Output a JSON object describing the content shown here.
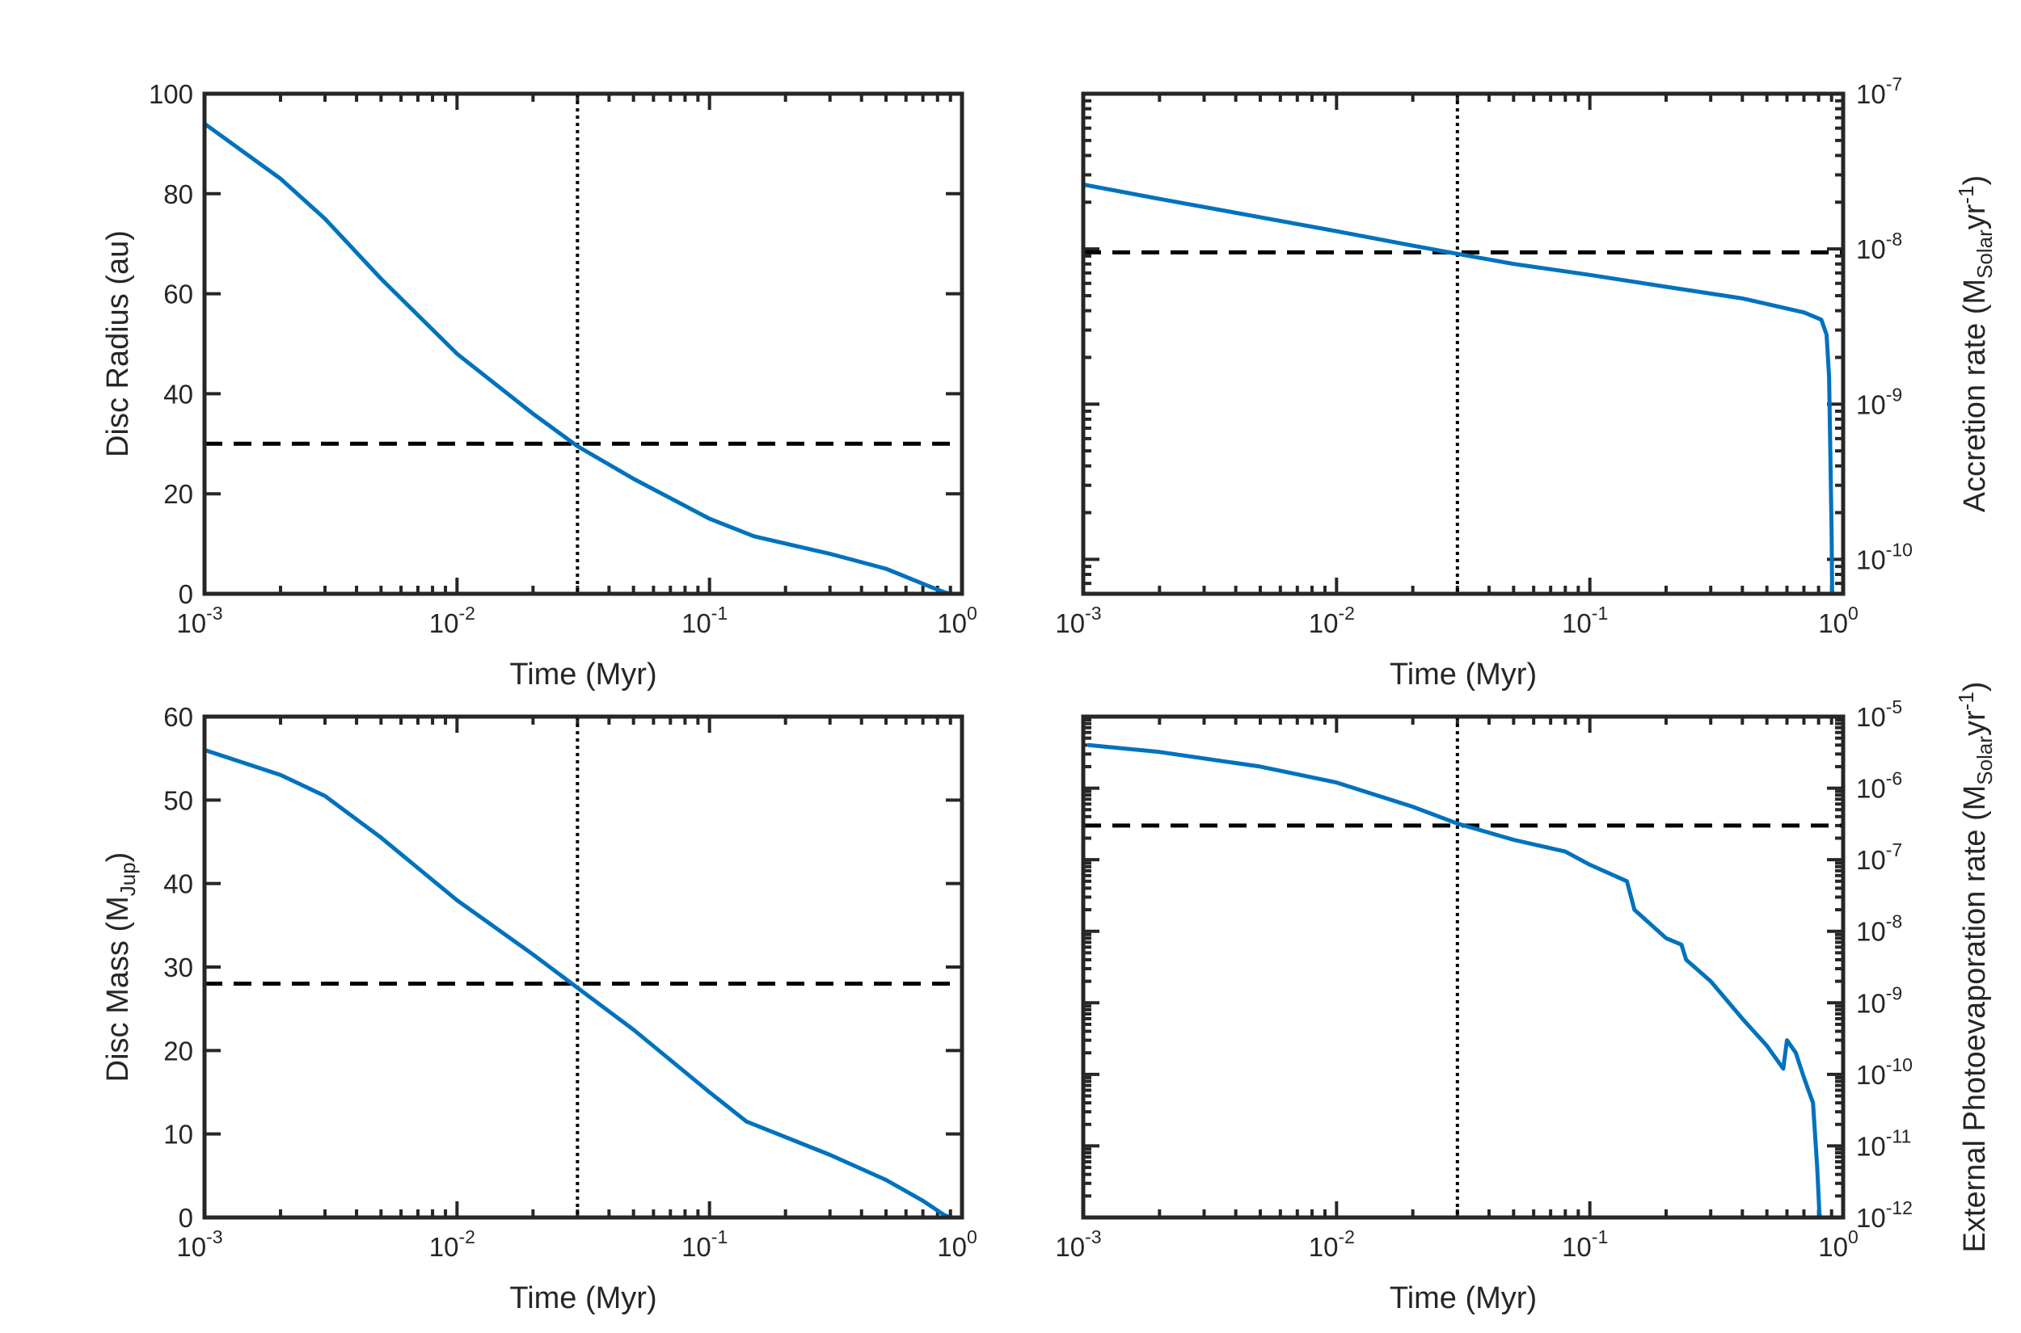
{
  "chart_data": [
    {
      "id": "p1",
      "type": "line",
      "xscale": "log",
      "xlim": [
        0.001,
        1
      ],
      "yscale": "linear",
      "ylim": [
        0,
        100
      ],
      "xlabel": "Time (Myr)",
      "ylabel": "Disc Radius (au)",
      "yaxis_side": "left",
      "xticks": [
        {
          "v": 0.001,
          "base": "10",
          "exp": "-3"
        },
        {
          "v": 0.01,
          "base": "10",
          "exp": "-2"
        },
        {
          "v": 0.1,
          "base": "10",
          "exp": "-1"
        },
        {
          "v": 1,
          "base": "10",
          "exp": "0"
        }
      ],
      "yticks": [
        {
          "v": 0,
          "text": "0"
        },
        {
          "v": 20,
          "text": "20"
        },
        {
          "v": 40,
          "text": "40"
        },
        {
          "v": 60,
          "text": "60"
        },
        {
          "v": 80,
          "text": "80"
        },
        {
          "v": 100,
          "text": "100"
        }
      ],
      "hline": 30,
      "vline": 0.03,
      "series": [
        {
          "name": "Disc Radius",
          "color": "#0072BD",
          "x": [
            0.001,
            0.002,
            0.003,
            0.005,
            0.01,
            0.02,
            0.03,
            0.05,
            0.1,
            0.15,
            0.3,
            0.5,
            0.7,
            0.85,
            0.9
          ],
          "y": [
            94,
            83,
            75,
            63,
            48,
            36,
            29.5,
            23,
            15,
            11.5,
            8,
            5,
            2,
            0.3,
            0
          ]
        }
      ]
    },
    {
      "id": "p2",
      "type": "line",
      "xscale": "log",
      "xlim": [
        0.001,
        1
      ],
      "yscale": "log",
      "ylim": [
        6e-11,
        1e-07
      ],
      "xlabel": "Time (Myr)",
      "ylabel": "Accretion rate (M",
      "ylabel_sub": "Solar",
      "ylabel_mid": "yr",
      "ylabel_sup": "-1",
      "ylabel_end": ")",
      "yaxis_side": "right",
      "xticks": [
        {
          "v": 0.001,
          "base": "10",
          "exp": "-3"
        },
        {
          "v": 0.01,
          "base": "10",
          "exp": "-2"
        },
        {
          "v": 0.1,
          "base": "10",
          "exp": "-1"
        },
        {
          "v": 1,
          "base": "10",
          "exp": "0"
        }
      ],
      "yticks": [
        {
          "v": 1e-10,
          "base": "10",
          "exp": "-10"
        },
        {
          "v": 1e-09,
          "base": "10",
          "exp": "-9"
        },
        {
          "v": 1e-08,
          "base": "10",
          "exp": "-8"
        },
        {
          "v": 1e-07,
          "base": "10",
          "exp": "-7"
        }
      ],
      "hline": 9.5e-09,
      "vline": 0.03,
      "series": [
        {
          "name": "Accretion rate",
          "color": "#0072BD",
          "x": [
            0.001,
            0.002,
            0.005,
            0.01,
            0.02,
            0.03,
            0.05,
            0.1,
            0.2,
            0.4,
            0.7,
            0.82,
            0.86,
            0.88,
            0.89,
            0.9,
            0.905
          ],
          "y": [
            2.6e-08,
            2.1e-08,
            1.6e-08,
            1.3e-08,
            1.05e-08,
            9.3e-09,
            8e-09,
            6.8e-09,
            5.7e-09,
            4.8e-09,
            3.9e-09,
            3.5e-09,
            2.8e-09,
            1.5e-09,
            5e-10,
            1.5e-10,
            6e-11
          ]
        }
      ]
    },
    {
      "id": "p3",
      "type": "line",
      "xscale": "log",
      "xlim": [
        0.001,
        1
      ],
      "yscale": "linear",
      "ylim": [
        0,
        60
      ],
      "xlabel": "Time (Myr)",
      "ylabel": "Disc Mass (M",
      "ylabel_sub": "Jup",
      "ylabel_end": ")",
      "yaxis_side": "left",
      "xticks": [
        {
          "v": 0.001,
          "base": "10",
          "exp": "-3"
        },
        {
          "v": 0.01,
          "base": "10",
          "exp": "-2"
        },
        {
          "v": 0.1,
          "base": "10",
          "exp": "-1"
        },
        {
          "v": 1,
          "base": "10",
          "exp": "0"
        }
      ],
      "yticks": [
        {
          "v": 0,
          "text": "0"
        },
        {
          "v": 10,
          "text": "10"
        },
        {
          "v": 20,
          "text": "20"
        },
        {
          "v": 30,
          "text": "30"
        },
        {
          "v": 40,
          "text": "40"
        },
        {
          "v": 50,
          "text": "50"
        },
        {
          "v": 60,
          "text": "60"
        }
      ],
      "hline": 28,
      "vline": 0.03,
      "series": [
        {
          "name": "Disc Mass",
          "color": "#0072BD",
          "x": [
            0.001,
            0.002,
            0.003,
            0.005,
            0.01,
            0.02,
            0.03,
            0.05,
            0.1,
            0.14,
            0.3,
            0.5,
            0.7,
            0.85,
            0.9
          ],
          "y": [
            56,
            53,
            50.5,
            45.5,
            38,
            31.5,
            27.5,
            22.5,
            15,
            11.5,
            7.5,
            4.5,
            2,
            0.3,
            0
          ]
        }
      ]
    },
    {
      "id": "p4",
      "type": "line",
      "xscale": "log",
      "xlim": [
        0.001,
        1
      ],
      "yscale": "log",
      "ylim": [
        1e-12,
        1e-05
      ],
      "xlabel": "Time (Myr)",
      "ylabel": "External Photoevaporation rate (M",
      "ylabel_sub": "Solar",
      "ylabel_mid": "yr",
      "ylabel_sup": "-1",
      "ylabel_end": ")",
      "yaxis_side": "right",
      "xticks": [
        {
          "v": 0.001,
          "base": "10",
          "exp": "-3"
        },
        {
          "v": 0.01,
          "base": "10",
          "exp": "-2"
        },
        {
          "v": 0.1,
          "base": "10",
          "exp": "-1"
        },
        {
          "v": 1,
          "base": "10",
          "exp": "0"
        }
      ],
      "yticks": [
        {
          "v": 1e-12,
          "base": "10",
          "exp": "-12"
        },
        {
          "v": 1e-11,
          "base": "10",
          "exp": "-11"
        },
        {
          "v": 1e-10,
          "base": "10",
          "exp": "-10"
        },
        {
          "v": 1e-09,
          "base": "10",
          "exp": "-9"
        },
        {
          "v": 1e-08,
          "base": "10",
          "exp": "-8"
        },
        {
          "v": 1e-07,
          "base": "10",
          "exp": "-7"
        },
        {
          "v": 1e-06,
          "base": "10",
          "exp": "-6"
        },
        {
          "v": 1e-05,
          "base": "10",
          "exp": "-5"
        }
      ],
      "hline": 3e-07,
      "vline": 0.03,
      "series": [
        {
          "name": "External Photoevaporation rate",
          "color": "#0072BD",
          "x": [
            0.00105,
            0.002,
            0.005,
            0.01,
            0.02,
            0.03,
            0.05,
            0.08,
            0.1,
            0.14,
            0.15,
            0.2,
            0.23,
            0.24,
            0.3,
            0.4,
            0.5,
            0.58,
            0.6,
            0.65,
            0.7,
            0.76,
            0.79,
            0.8,
            0.805,
            0.81
          ],
          "y": [
            4e-06,
            3.2e-06,
            2e-06,
            1.2e-06,
            5.5e-07,
            3.2e-07,
            1.9e-07,
            1.3e-07,
            8.5e-08,
            5e-08,
            2e-08,
            8e-09,
            6.5e-09,
            4e-09,
            2e-09,
            6e-10,
            2.5e-10,
            1.2e-10,
            3e-10,
            2e-10,
            9e-11,
            4e-11,
            5e-12,
            2e-12,
            1.2e-12,
            1e-12
          ]
        }
      ]
    }
  ]
}
